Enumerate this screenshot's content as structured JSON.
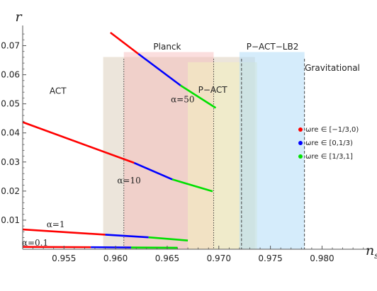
{
  "chart_data": {
    "type": "line",
    "xlabel": "n_s",
    "ylabel": "r",
    "xlim": [
      0.951,
      0.9845
    ],
    "ylim": [
      0.0,
      0.0745
    ],
    "x_ticks": [
      0.955,
      0.96,
      0.965,
      0.97,
      0.975,
      0.98
    ],
    "x_tick_labels": [
      "0.955",
      "0.960",
      "0.965",
      "0.970",
      "0.975",
      "0.980"
    ],
    "y_ticks": [
      0.01,
      0.02,
      0.03,
      0.04,
      0.05,
      0.06,
      0.07
    ],
    "y_tick_labels": [
      "0.01",
      "0.02",
      "0.03",
      "0.04",
      "0.05",
      "0.06",
      "0.07"
    ],
    "grid": false,
    "legend_position": "right",
    "regions": [
      {
        "name": "ACT",
        "x": [
          0.9588,
          0.9735
        ],
        "y": [
          0.0,
          0.0661
        ],
        "color": "#d9ccb8",
        "opacity": 0.5
      },
      {
        "name": "Planck",
        "x": [
          0.9608,
          0.9695
        ],
        "y": [
          0.0,
          0.0678
        ],
        "color": "#f7b5b5",
        "opacity": 0.45
      },
      {
        "name": "P-ACT",
        "x": [
          0.967,
          0.9737
        ],
        "y": [
          0.0,
          0.0643
        ],
        "color": "#f3efc0",
        "opacity": 0.6
      },
      {
        "name": "P-ACT-LB2",
        "x": [
          0.972,
          0.9783
        ],
        "y": [
          0.0,
          0.0678
        ],
        "color": "#b3dcf7",
        "opacity": 0.55
      }
    ],
    "region_labels": {
      "act": "ACT",
      "planck": "Planck",
      "pact": "P−ACT",
      "pactlb2": "P−ACT−LB2",
      "gravitational": "Gravitational"
    },
    "vlines": [
      {
        "x": 0.9608,
        "style": "dotted"
      },
      {
        "x": 0.9695,
        "style": "dotted"
      },
      {
        "x": 0.9722,
        "style": "dashed"
      },
      {
        "x": 0.9783,
        "style": "dashed"
      }
    ],
    "series": [
      {
        "alpha": "α=50",
        "segments": [
          {
            "phase": "red",
            "x": [
              0.9595,
              0.9622
            ],
            "y": [
              0.0745,
              0.0672
            ]
          },
          {
            "phase": "blue",
            "x": [
              0.9622,
              0.9663
            ],
            "y": [
              0.0672,
              0.0563
            ]
          },
          {
            "phase": "green",
            "x": [
              0.9663,
              0.9697
            ],
            "y": [
              0.0563,
              0.0486
            ]
          }
        ]
      },
      {
        "alpha": "α=10",
        "segments": [
          {
            "phase": "red",
            "x": [
              0.951,
              0.9618
            ],
            "y": [
              0.0437,
              0.0297
            ]
          },
          {
            "phase": "blue",
            "x": [
              0.9618,
              0.9655
            ],
            "y": [
              0.0297,
              0.024
            ]
          },
          {
            "phase": "green",
            "x": [
              0.9655,
              0.9694
            ],
            "y": [
              0.024,
              0.0199
            ]
          }
        ]
      },
      {
        "alpha": "α=1",
        "segments": [
          {
            "phase": "red",
            "x": [
              0.951,
              0.959
            ],
            "y": [
              0.0068,
              0.005
            ]
          },
          {
            "phase": "blue",
            "x": [
              0.959,
              0.9632
            ],
            "y": [
              0.005,
              0.0041
            ]
          },
          {
            "phase": "green",
            "x": [
              0.9632,
              0.967
            ],
            "y": [
              0.0041,
              0.003
            ]
          }
        ]
      },
      {
        "alpha": "α=0.1",
        "segments": [
          {
            "phase": "red",
            "x": [
              0.951,
              0.9576
            ],
            "y": [
              0.0008,
              0.0007
            ]
          },
          {
            "phase": "blue",
            "x": [
              0.9576,
              0.9615
            ],
            "y": [
              0.0007,
              0.0006
            ]
          },
          {
            "phase": "green",
            "x": [
              0.9615,
              0.966
            ],
            "y": [
              0.0006,
              0.0005
            ]
          }
        ]
      }
    ],
    "alpha_label_anchor": [
      {
        "text": "α=50",
        "x": 0.9665,
        "y": 0.0505
      },
      {
        "text": "α=10",
        "x": 0.9613,
        "y": 0.0227
      },
      {
        "text": "α=1",
        "x": 0.9542,
        "y": 0.0075
      },
      {
        "text": "α=0.1",
        "x": 0.9522,
        "y": 0.0012
      }
    ],
    "legend": [
      {
        "phase": "red",
        "text": "ωre ∈ [−1/3,0)"
      },
      {
        "phase": "blue",
        "text": "ωre ∈ [0,1/3)"
      },
      {
        "phase": "green",
        "text": "ωre ∈ [1/3,1]"
      }
    ],
    "colors": {
      "red": "#ff0000",
      "blue": "#0000ff",
      "green": "#00e000",
      "axis": "#555555"
    }
  }
}
